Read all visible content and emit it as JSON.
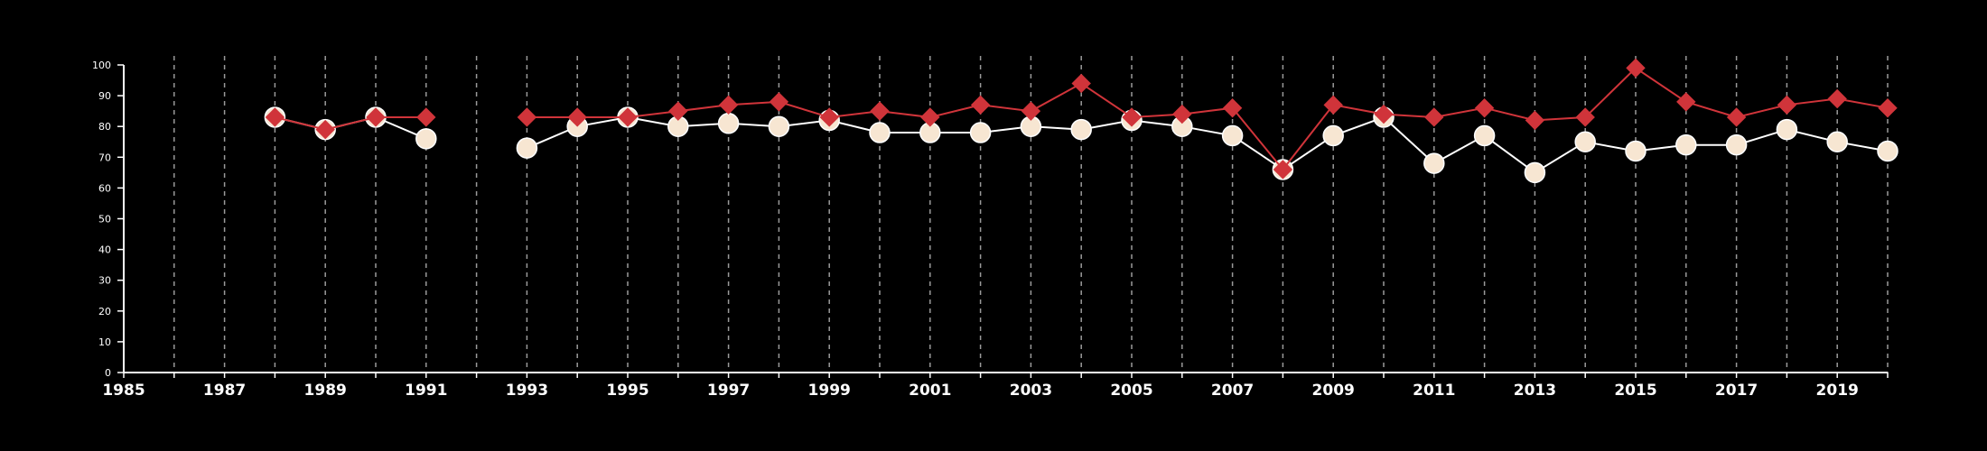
{
  "chart_data": {
    "type": "line",
    "title": "",
    "xlabel": "",
    "ylabel": "",
    "xlim": [
      1985,
      2020
    ],
    "ylim": [
      0,
      100
    ],
    "y_ticks": [
      0,
      10,
      20,
      30,
      40,
      50,
      60,
      70,
      80,
      90,
      100
    ],
    "x_tick_labels": [
      "1985",
      "1987",
      "1989",
      "1991",
      "1993",
      "1995",
      "1997",
      "1999",
      "2001",
      "2003",
      "2005",
      "2007",
      "2009",
      "2011",
      "2013",
      "2015",
      "2017",
      "2019"
    ],
    "grid": {
      "vertical": true,
      "horizontal": false,
      "style": "dashed"
    },
    "series": [
      {
        "marker": "circle",
        "color": "#ffffff",
        "marker_fill": "#f7e6d2",
        "points": [
          [
            1988,
            83
          ],
          [
            1989,
            79
          ],
          [
            1990,
            83
          ],
          [
            1991,
            76
          ],
          null,
          [
            1993,
            73
          ],
          [
            1994,
            80
          ],
          [
            1995,
            83
          ],
          [
            1996,
            80
          ],
          [
            1997,
            81
          ],
          [
            1998,
            80
          ],
          [
            1999,
            82
          ],
          [
            2000,
            78
          ],
          [
            2001,
            78
          ],
          [
            2002,
            78
          ],
          [
            2003,
            80
          ],
          [
            2004,
            79
          ],
          [
            2005,
            82
          ],
          [
            2006,
            80
          ],
          [
            2007,
            77
          ],
          [
            2008,
            66
          ],
          [
            2009,
            77
          ],
          [
            2010,
            83
          ],
          [
            2011,
            68
          ],
          [
            2012,
            77
          ],
          [
            2013,
            65
          ],
          [
            2014,
            75
          ],
          [
            2015,
            72
          ],
          [
            2016,
            74
          ],
          [
            2017,
            74
          ],
          [
            2018,
            79
          ],
          [
            2019,
            75
          ],
          [
            2020,
            72
          ]
        ]
      },
      {
        "marker": "diamond",
        "color": "#d0343a",
        "marker_fill": "#d0343a",
        "points": [
          [
            1988,
            83
          ],
          [
            1989,
            79
          ],
          [
            1990,
            83
          ],
          [
            1991,
            83
          ],
          null,
          [
            1993,
            83
          ],
          [
            1994,
            83
          ],
          [
            1995,
            83
          ],
          [
            1996,
            85
          ],
          [
            1997,
            87
          ],
          [
            1998,
            88
          ],
          [
            1999,
            83
          ],
          [
            2000,
            85
          ],
          [
            2001,
            83
          ],
          [
            2002,
            87
          ],
          [
            2003,
            85
          ],
          [
            2004,
            94
          ],
          [
            2005,
            83
          ],
          [
            2006,
            84
          ],
          [
            2007,
            86
          ],
          [
            2008,
            66
          ],
          [
            2009,
            87
          ],
          [
            2010,
            84
          ],
          [
            2011,
            83
          ],
          [
            2012,
            86
          ],
          [
            2013,
            82
          ],
          [
            2014,
            83
          ],
          [
            2015,
            99
          ],
          [
            2016,
            88
          ],
          [
            2017,
            83
          ],
          [
            2018,
            87
          ],
          [
            2019,
            89
          ],
          [
            2020,
            86
          ]
        ]
      }
    ]
  }
}
